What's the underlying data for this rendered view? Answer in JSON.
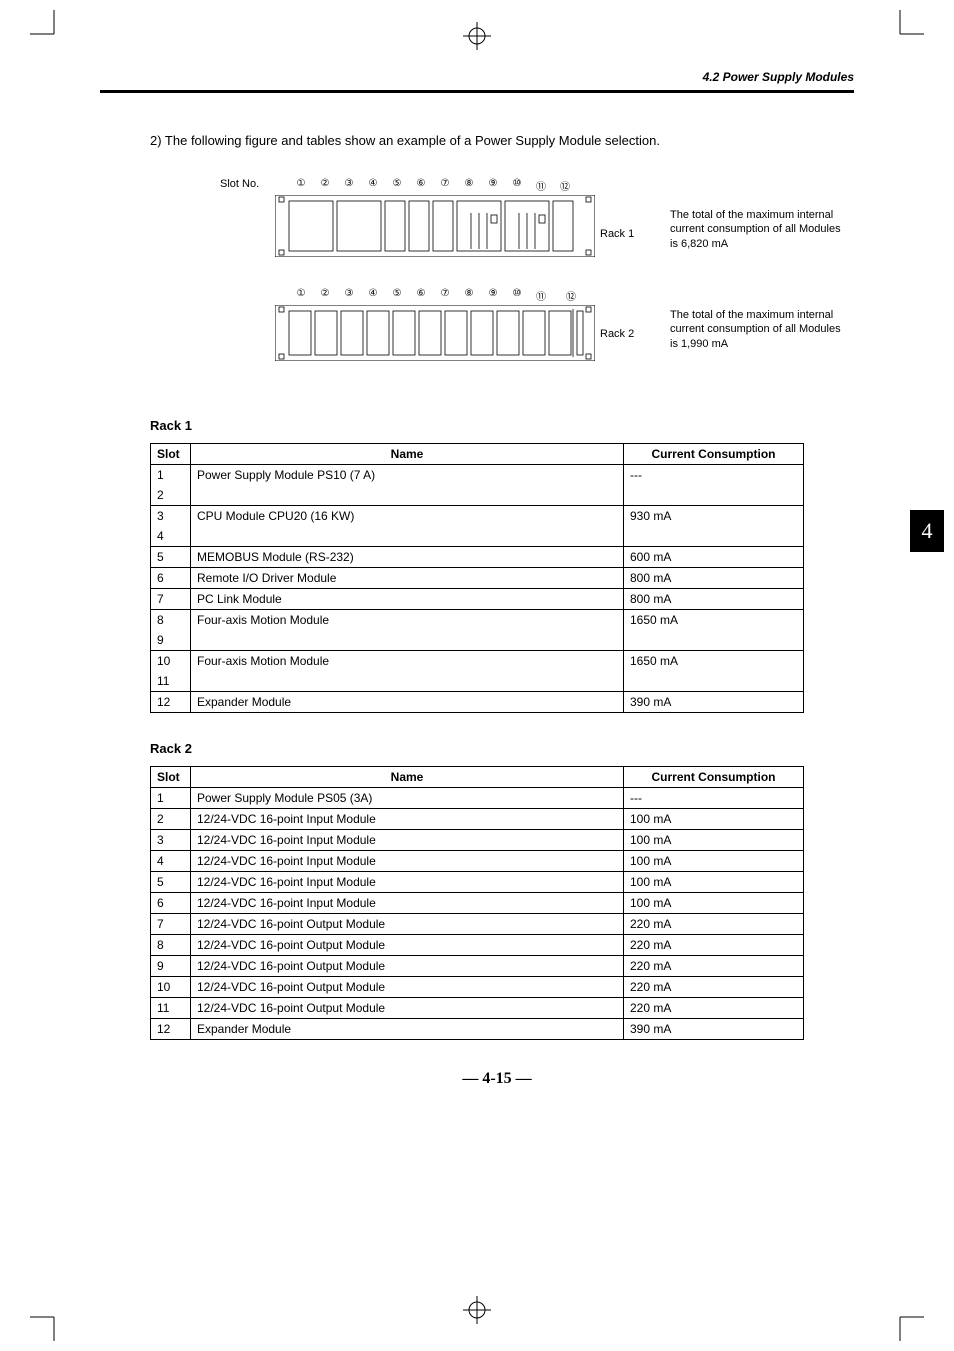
{
  "header": {
    "section_title": "4.2 Power Supply Modules"
  },
  "intro_text": "2) The following figure and tables show an example of a Power Supply Module selection.",
  "figure": {
    "slot_no_label": "Slot No.",
    "slot_labels": [
      "①",
      "②",
      "③",
      "④",
      "⑤",
      "⑥",
      "⑦",
      "⑧",
      "⑨",
      "⑩",
      "⑪",
      "⑫"
    ],
    "rack1_label": "Rack 1",
    "rack2_label": "Rack 2",
    "note1": "The total of the maximum internal current consumption of all Modules is 6,820 mA",
    "note2": "The total of the maximum internal current consumption of all Modules is 1,990 mA"
  },
  "rack1": {
    "title": "Rack 1",
    "columns": [
      "Slot",
      "Name",
      "Current Consumption"
    ],
    "rows": [
      {
        "slots": [
          "1",
          "2"
        ],
        "name": "Power Supply Module PS10 (7 A)",
        "cc": "---"
      },
      {
        "slots": [
          "3",
          "4"
        ],
        "name": "CPU Module CPU20 (16 KW)",
        "cc": "930 mA"
      },
      {
        "slots": [
          "5"
        ],
        "name": "MEMOBUS Module (RS-232)",
        "cc": "600 mA"
      },
      {
        "slots": [
          "6"
        ],
        "name": "Remote I/O Driver Module",
        "cc": "800 mA"
      },
      {
        "slots": [
          "7"
        ],
        "name": "PC Link Module",
        "cc": "800 mA"
      },
      {
        "slots": [
          "8",
          "9"
        ],
        "name": "Four-axis Motion Module",
        "cc": "1650 mA"
      },
      {
        "slots": [
          "10",
          "11"
        ],
        "name": "Four-axis Motion Module",
        "cc": "1650 mA"
      },
      {
        "slots": [
          "12"
        ],
        "name": "Expander Module",
        "cc": "390 mA"
      }
    ]
  },
  "rack2": {
    "title": "Rack 2",
    "columns": [
      "Slot",
      "Name",
      "Current Consumption"
    ],
    "rows": [
      {
        "slots": [
          "1"
        ],
        "name": "Power Supply Module PS05 (3A)",
        "cc": "---"
      },
      {
        "slots": [
          "2"
        ],
        "name": "12/24-VDC 16-point Input Module",
        "cc": "100 mA"
      },
      {
        "slots": [
          "3"
        ],
        "name": "12/24-VDC 16-point Input Module",
        "cc": "100 mA"
      },
      {
        "slots": [
          "4"
        ],
        "name": "12/24-VDC 16-point Input Module",
        "cc": "100 mA"
      },
      {
        "slots": [
          "5"
        ],
        "name": "12/24-VDC 16-point Input Module",
        "cc": "100 mA"
      },
      {
        "slots": [
          "6"
        ],
        "name": "12/24-VDC 16-point Input Module",
        "cc": "100 mA"
      },
      {
        "slots": [
          "7"
        ],
        "name": "12/24-VDC 16-point Output Module",
        "cc": "220 mA"
      },
      {
        "slots": [
          "8"
        ],
        "name": "12/24-VDC 16-point Output Module",
        "cc": "220 mA"
      },
      {
        "slots": [
          "9"
        ],
        "name": "12/24-VDC 16-point Output Module",
        "cc": "220 mA"
      },
      {
        "slots": [
          "10"
        ],
        "name": "12/24-VDC 16-point Output Module",
        "cc": "220 mA"
      },
      {
        "slots": [
          "11"
        ],
        "name": "12/24-VDC 16-point Output Module",
        "cc": "220 mA"
      },
      {
        "slots": [
          "12"
        ],
        "name": "Expander Module",
        "cc": "390 mA"
      }
    ]
  },
  "page_number": "— 4-15 —",
  "side_tab": "4",
  "colors": {
    "text": "#000000",
    "background": "#ffffff",
    "rule": "#000000",
    "tab_bg": "#000000",
    "tab_fg": "#ffffff"
  }
}
